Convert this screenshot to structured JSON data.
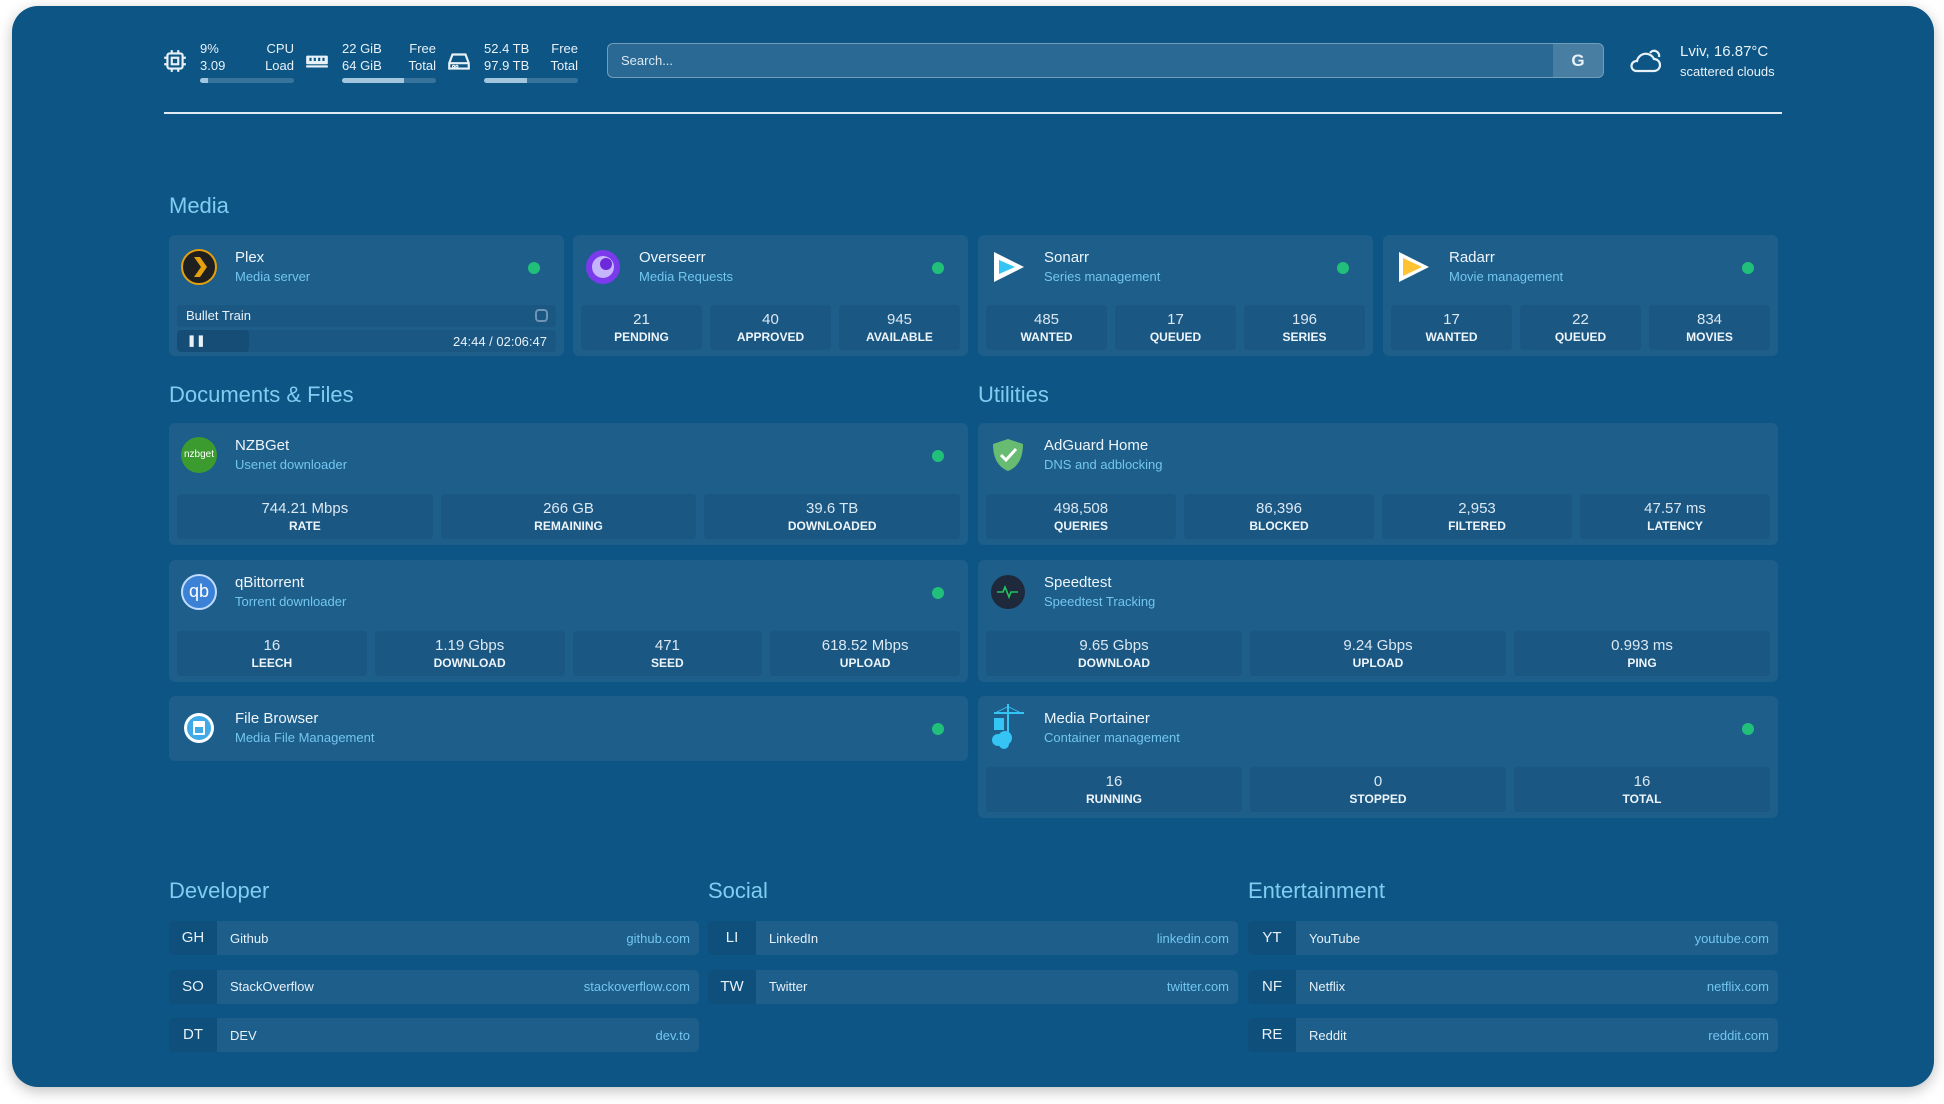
{
  "header": {
    "cpu": {
      "value1": "9%",
      "label1": "CPU",
      "value2": "3.09",
      "label2": "Load",
      "usage_percent": 9,
      "icon": "cpu-icon"
    },
    "memory": {
      "value1": "22 GiB",
      "label1": "Free",
      "value2": "64 GiB",
      "label2": "Total",
      "usage_percent": 66,
      "icon": "memory-icon"
    },
    "disk": {
      "value1": "52.4 TB",
      "label1": "Free",
      "value2": "97.9 TB",
      "label2": "Total",
      "usage_percent": 46,
      "icon": "disk-icon"
    },
    "search": {
      "placeholder": "Search...",
      "button": "G"
    },
    "weather": {
      "location": "Lviv, 16.87°C",
      "condition": "scattered clouds",
      "icon": "cloud-icon"
    }
  },
  "sections": {
    "media": "Media",
    "documents": "Documents & Files",
    "utilities": "Utilities",
    "developer": "Developer",
    "social": "Social",
    "entertainment": "Entertainment"
  },
  "media": [
    {
      "title": "Plex",
      "sub": "Media server",
      "now_playing": "Bullet Train",
      "time": "24:44 / 02:06:47",
      "progress_percent": 19
    },
    {
      "title": "Overseerr",
      "sub": "Media Requests",
      "stats": [
        {
          "v": "21",
          "l": "PENDING"
        },
        {
          "v": "40",
          "l": "APPROVED"
        },
        {
          "v": "945",
          "l": "AVAILABLE"
        }
      ]
    },
    {
      "title": "Sonarr",
      "sub": "Series management",
      "stats": [
        {
          "v": "485",
          "l": "WANTED"
        },
        {
          "v": "17",
          "l": "QUEUED"
        },
        {
          "v": "196",
          "l": "SERIES"
        }
      ]
    },
    {
      "title": "Radarr",
      "sub": "Movie management",
      "stats": [
        {
          "v": "17",
          "l": "WANTED"
        },
        {
          "v": "22",
          "l": "QUEUED"
        },
        {
          "v": "834",
          "l": "MOVIES"
        }
      ]
    }
  ],
  "documents": [
    {
      "title": "NZBGet",
      "sub": "Usenet downloader",
      "icon_text": "nzbget",
      "stats": [
        {
          "v": "744.21 Mbps",
          "l": "RATE"
        },
        {
          "v": "266 GB",
          "l": "REMAINING"
        },
        {
          "v": "39.6 TB",
          "l": "DOWNLOADED"
        }
      ]
    },
    {
      "title": "qBittorrent",
      "sub": "Torrent downloader",
      "icon_text": "qb",
      "stats": [
        {
          "v": "16",
          "l": "LEECH"
        },
        {
          "v": "1.19 Gbps",
          "l": "DOWNLOAD"
        },
        {
          "v": "471",
          "l": "SEED"
        },
        {
          "v": "618.52 Mbps",
          "l": "UPLOAD"
        }
      ]
    },
    {
      "title": "File Browser",
      "sub": "Media File Management"
    }
  ],
  "utilities": [
    {
      "title": "AdGuard Home",
      "sub": "DNS and adblocking",
      "stats": [
        {
          "v": "498,508",
          "l": "QUERIES"
        },
        {
          "v": "86,396",
          "l": "BLOCKED"
        },
        {
          "v": "2,953",
          "l": "FILTERED"
        },
        {
          "v": "47.57 ms",
          "l": "LATENCY"
        }
      ]
    },
    {
      "title": "Speedtest",
      "sub": "Speedtest Tracking",
      "stats": [
        {
          "v": "9.65 Gbps",
          "l": "DOWNLOAD"
        },
        {
          "v": "9.24 Gbps",
          "l": "UPLOAD"
        },
        {
          "v": "0.993 ms",
          "l": "PING"
        }
      ]
    },
    {
      "title": "Media Portainer",
      "sub": "Container management",
      "stats": [
        {
          "v": "16",
          "l": "RUNNING"
        },
        {
          "v": "0",
          "l": "STOPPED"
        },
        {
          "v": "16",
          "l": "TOTAL"
        }
      ]
    }
  ],
  "bookmarks": {
    "developer": [
      {
        "ab": "GH",
        "name": "Github",
        "url": "github.com"
      },
      {
        "ab": "SO",
        "name": "StackOverflow",
        "url": "stackoverflow.com"
      },
      {
        "ab": "DT",
        "name": "DEV",
        "url": "dev.to"
      }
    ],
    "social": [
      {
        "ab": "LI",
        "name": "LinkedIn",
        "url": "linkedin.com"
      },
      {
        "ab": "TW",
        "name": "Twitter",
        "url": "twitter.com"
      }
    ],
    "entertainment": [
      {
        "ab": "YT",
        "name": "YouTube",
        "url": "youtube.com"
      },
      {
        "ab": "NF",
        "name": "Netflix",
        "url": "netflix.com"
      },
      {
        "ab": "RE",
        "name": "Reddit",
        "url": "reddit.com"
      }
    ]
  },
  "colors": {
    "background": "#0c5584",
    "card": "#1d5e8b",
    "accent": "#73c6f0",
    "status_online": "#21c07a"
  }
}
